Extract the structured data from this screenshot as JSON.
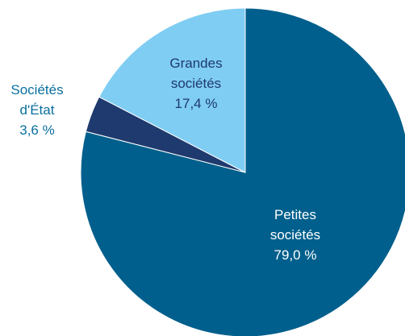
{
  "chart_data": {
    "type": "pie",
    "title": "",
    "start_angle_deg": 0,
    "direction": "clockwise",
    "slices": [
      {
        "label_lines": [
          "Petites",
          "sociétés",
          "79,0 %"
        ],
        "value": 79.0,
        "color": "#005F8C",
        "label_color": "#FFFFFF"
      },
      {
        "label_lines": [
          "Sociétés",
          "d'État",
          "3,6 %"
        ],
        "value": 3.6,
        "color": "#1F3A6E",
        "label_color": "#0A6F9E",
        "label_outside": true
      },
      {
        "label_lines": [
          "Grandes",
          "sociétés",
          "17,4 %"
        ],
        "value": 17.4,
        "color": "#7FCDF3",
        "label_color": "#1F3A6E"
      }
    ]
  }
}
